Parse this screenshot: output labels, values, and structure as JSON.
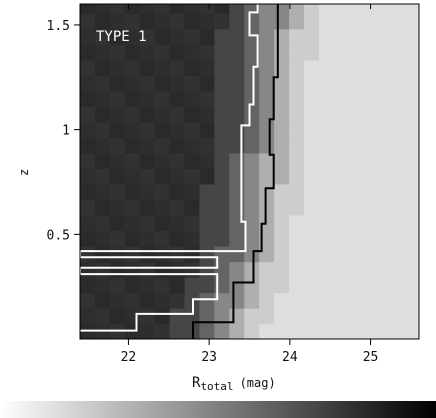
{
  "chart_data": {
    "type": "heatmap",
    "panel_label": "TYPE 1",
    "xlabel_main": "R",
    "xlabel_sub": "total",
    "xlabel_unit": "(mag)",
    "ylabel": "z",
    "xlim": [
      21.4,
      25.6
    ],
    "ylim": [
      0,
      1.6
    ],
    "x_ticks": [
      {
        "value": 22,
        "label": "22"
      },
      {
        "value": 23,
        "label": "23"
      },
      {
        "value": 24,
        "label": "24"
      },
      {
        "value": 25,
        "label": "25"
      }
    ],
    "y_ticks": [
      {
        "value": 0.5,
        "label": "0.5"
      },
      {
        "value": 1.0,
        "label": "1"
      },
      {
        "value": 1.5,
        "label": "1.5"
      }
    ],
    "grid": false,
    "colorbar": {
      "orientation": "horizontal",
      "placement": "bottom",
      "from": "#ffffff",
      "to": "#000000"
    },
    "cell_size": {
      "dx": 0.185,
      "dz": 0.0741
    },
    "rows": [
      {
        "z": 0.037,
        "boundary": 22.8
      },
      {
        "z": 0.111,
        "boundary": 22.9
      },
      {
        "z": 0.185,
        "boundary": 22.95
      },
      {
        "z": 0.259,
        "boundary": 23.05
      },
      {
        "z": 0.333,
        "boundary": 23.1
      },
      {
        "z": 0.407,
        "boundary": 23.15
      },
      {
        "z": 0.481,
        "boundary": 23.2
      },
      {
        "z": 0.556,
        "boundary": 23.2
      },
      {
        "z": 0.63,
        "boundary": 23.25
      },
      {
        "z": 0.704,
        "boundary": 23.25
      },
      {
        "z": 0.778,
        "boundary": 23.3
      },
      {
        "z": 0.852,
        "boundary": 23.3
      },
      {
        "z": 0.926,
        "boundary": 23.35
      },
      {
        "z": 1.0,
        "boundary": 23.35
      },
      {
        "z": 1.074,
        "boundary": 23.35
      },
      {
        "z": 1.148,
        "boundary": 23.4
      },
      {
        "z": 1.222,
        "boundary": 23.4
      },
      {
        "z": 1.296,
        "boundary": 23.4
      },
      {
        "z": 1.37,
        "boundary": 23.45
      },
      {
        "z": 1.444,
        "boundary": 23.45
      },
      {
        "z": 1.519,
        "boundary": 23.5
      },
      {
        "z": 1.593,
        "boundary": 23.5
      }
    ],
    "contours": [
      {
        "name": "white-contour",
        "color": "#ffffff",
        "points": [
          [
            21.4,
            0.04
          ],
          [
            22.1,
            0.04
          ],
          [
            22.1,
            0.12
          ],
          [
            22.8,
            0.12
          ],
          [
            22.8,
            0.19
          ],
          [
            23.1,
            0.19
          ],
          [
            23.1,
            0.31
          ],
          [
            21.4,
            0.31
          ],
          [
            21.4,
            0.34
          ],
          [
            23.1,
            0.34
          ],
          [
            23.1,
            0.39
          ],
          [
            21.4,
            0.39
          ],
          [
            21.4,
            0.42
          ],
          [
            23.45,
            0.42
          ],
          [
            23.45,
            0.56
          ],
          [
            23.4,
            0.56
          ],
          [
            23.4,
            0.77
          ],
          [
            23.4,
            1.02
          ],
          [
            23.5,
            1.02
          ],
          [
            23.5,
            1.12
          ],
          [
            23.55,
            1.12
          ],
          [
            23.55,
            1.3
          ],
          [
            23.6,
            1.3
          ],
          [
            23.6,
            1.45
          ],
          [
            23.5,
            1.45
          ],
          [
            23.5,
            1.56
          ],
          [
            23.6,
            1.56
          ],
          [
            23.6,
            1.6
          ]
        ]
      },
      {
        "name": "black-contour",
        "color": "#000000",
        "points": [
          [
            22.8,
            0.0
          ],
          [
            22.8,
            0.08
          ],
          [
            23.3,
            0.08
          ],
          [
            23.3,
            0.27
          ],
          [
            23.55,
            0.27
          ],
          [
            23.55,
            0.42
          ],
          [
            23.65,
            0.42
          ],
          [
            23.65,
            0.55
          ],
          [
            23.7,
            0.55
          ],
          [
            23.7,
            0.72
          ],
          [
            23.8,
            0.72
          ],
          [
            23.8,
            0.88
          ],
          [
            23.75,
            0.88
          ],
          [
            23.75,
            1.05
          ],
          [
            23.8,
            1.05
          ],
          [
            23.8,
            1.25
          ],
          [
            23.85,
            1.25
          ],
          [
            23.85,
            1.6
          ]
        ]
      }
    ]
  }
}
